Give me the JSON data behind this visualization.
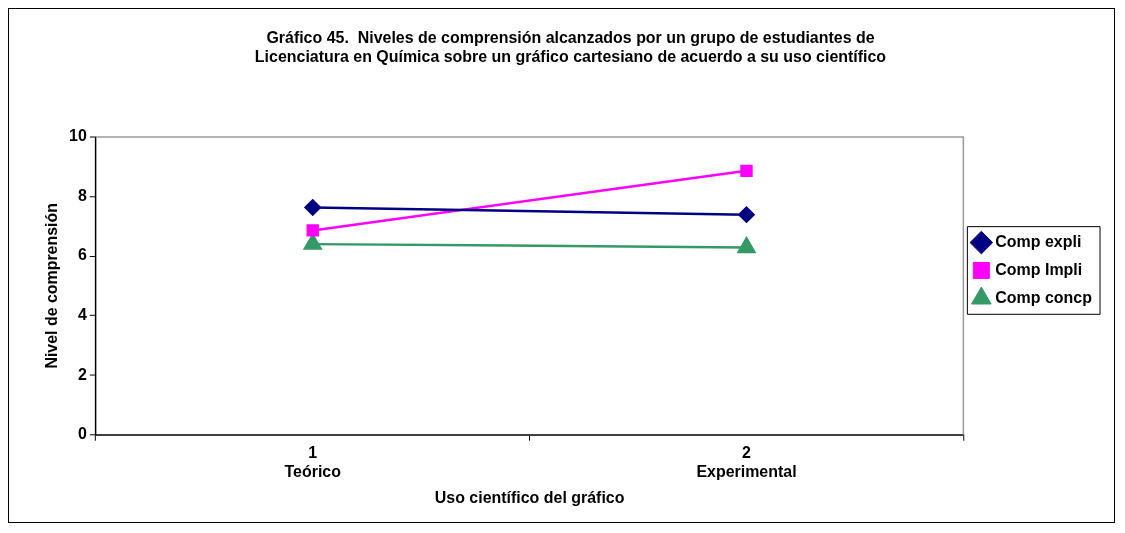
{
  "chart_data": {
    "type": "line",
    "title": "Gráfico 45.  Niveles de comprensión alcanzados por un grupo de estudiantes de\nLicenciatura en Química sobre un gráfico cartesiano de acuerdo a su uso científico",
    "xlabel": "Uso científico del gráfico",
    "ylabel": "Nivel de comprensión",
    "categories": [
      "1\nTeórico",
      "2\nExperimental"
    ],
    "series": [
      {
        "name": "Comp expli",
        "color": "#000080",
        "marker": "diamond",
        "values": [
          7.63,
          7.39
        ]
      },
      {
        "name": "Comp Impli",
        "color": "#ff00ff",
        "marker": "square",
        "values": [
          6.86,
          8.86
        ]
      },
      {
        "name": "Comp concp",
        "color": "#339966",
        "marker": "triangle",
        "values": [
          6.4,
          6.29
        ]
      }
    ],
    "ylim": [
      0,
      10
    ],
    "yticks": [
      0,
      2,
      4,
      6,
      8,
      10
    ],
    "grid": false,
    "legend": "right"
  }
}
